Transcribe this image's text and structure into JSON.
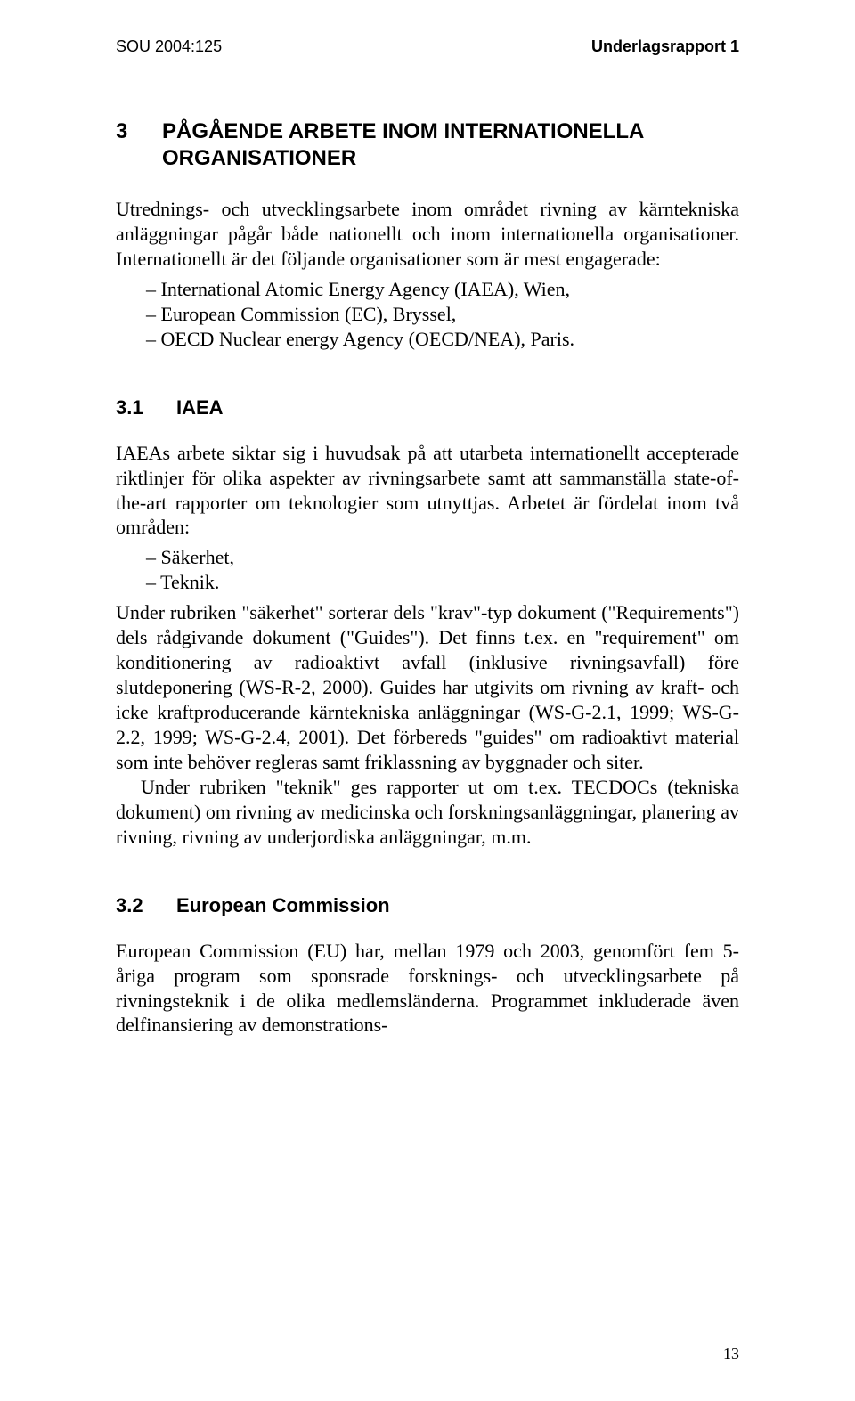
{
  "header": {
    "left": "SOU 2004:125",
    "right": "Underlagsrapport 1"
  },
  "section": {
    "num": "3",
    "title": "PÅGÅENDE ARBETE INOM INTERNATIONELLA ORGANISATIONER",
    "intro": "Utrednings- och utvecklingsarbete inom området rivning av kärntekniska anläggningar pågår både nationellt och inom internationella organisationer. Internationellt är det följande organisationer som är mest engagerade:",
    "orgs": [
      "International Atomic Energy Agency (IAEA), Wien,",
      "European Commission (EC), Bryssel,",
      "OECD Nuclear energy Agency (OECD/NEA), Paris."
    ]
  },
  "sub1": {
    "num": "3.1",
    "title": "IAEA",
    "p1": "IAEAs arbete siktar sig i huvudsak på att utarbeta internationellt accepterade riktlinjer för olika aspekter av rivningsarbete samt att sammanställa state-of-the-art rapporter om teknologier som utnyttjas. Arbetet är fördelat inom två områden:",
    "areas": [
      "Säkerhet,",
      "Teknik."
    ],
    "p2": "Under rubriken \"säkerhet\" sorterar dels \"krav\"-typ dokument (\"Requirements\") dels rådgivande dokument (\"Guides\"). Det finns t.ex. en \"requirement\" om konditionering av radioaktivt avfall (inklusive rivningsavfall) före slutdeponering (WS-R-2, 2000). Guides har utgivits om rivning av kraft- och icke kraftproducerande kärntekniska anläggningar (WS-G-2.1, 1999; WS-G-2.2, 1999; WS-G-2.4, 2001). Det förbereds \"guides\" om radioaktivt material som inte behöver regleras samt friklassning av byggnader och siter.",
    "p3": "Under rubriken \"teknik\" ges rapporter ut om t.ex. TECDOCs (tekniska dokument) om rivning av medicinska och forskningsanläggningar, planering av rivning, rivning av underjordiska anläggningar, m.m."
  },
  "sub2": {
    "num": "3.2",
    "title": "European Commission",
    "p1": "European Commission (EU) har, mellan 1979 och 2003, genomfört fem 5-åriga program som sponsrade forsknings- och utvecklingsarbete på rivningsteknik i de olika medlemsländerna. Programmet inkluderade även delfinansiering av demonstrations-"
  },
  "pageNumber": "13"
}
